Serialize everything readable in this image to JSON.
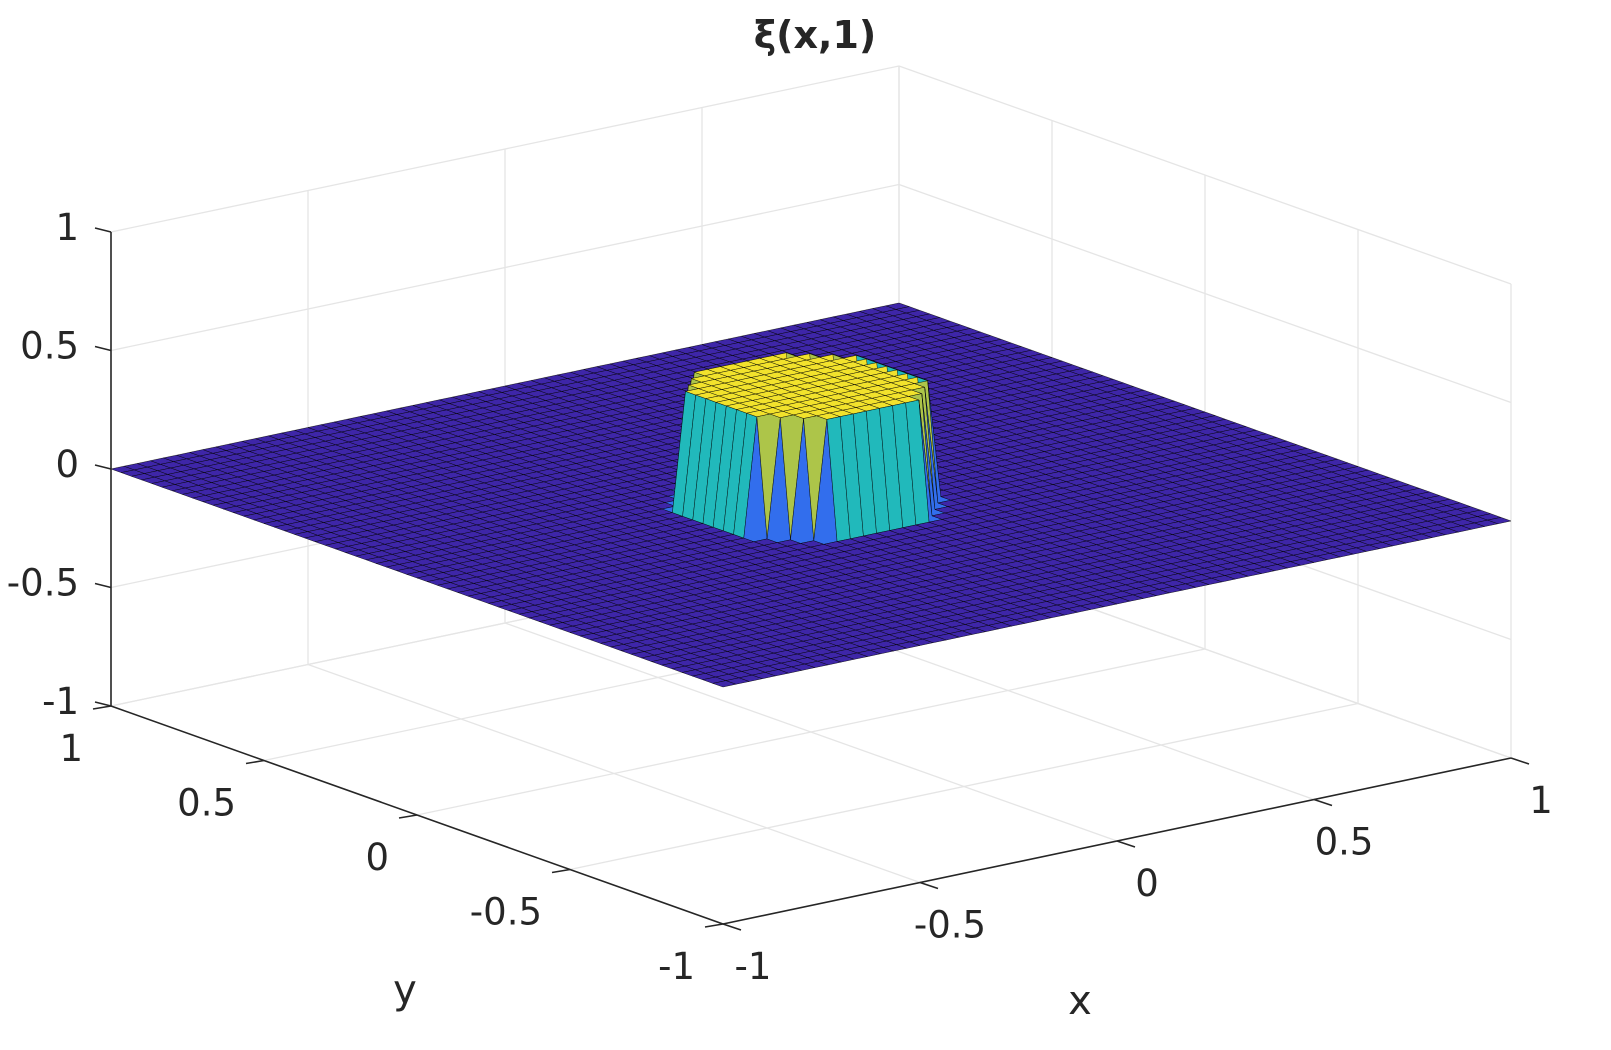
{
  "chart_data": {
    "type": "surface",
    "title": "ξ(x,1)",
    "xlabel": "x",
    "ylabel": "y",
    "zlabel": "",
    "xlim": [
      -1,
      1
    ],
    "ylim": [
      -1,
      1
    ],
    "zlim": [
      -1,
      1
    ],
    "xticks": [
      -1,
      -0.5,
      0,
      0.5,
      1
    ],
    "yticks": [
      -1,
      -0.5,
      0,
      0.5,
      1
    ],
    "zticks": [
      -1,
      -0.5,
      0,
      0.5,
      1
    ],
    "xtick_labels": [
      "-1",
      "-0.5",
      "0",
      "0.5",
      "1"
    ],
    "ytick_labels": [
      "-1",
      "-0.5",
      "0",
      "0.5",
      "1"
    ],
    "ztick_labels": [
      "-1",
      "-0.5",
      "0",
      "0.5",
      "1"
    ],
    "grid": true,
    "colormap": "parula",
    "grid_resolution": [
      61,
      61
    ],
    "surface": {
      "shape": "flat-topped cylindrical bump",
      "center": [
        -0.05,
        -0.05
      ],
      "radius": 0.25,
      "height": 0.5,
      "baseline": 0
    },
    "colors": {
      "base": "#3e26a8",
      "top": "#f2e22c",
      "edge": "#000000",
      "grid": "#e5e5e5",
      "axis": "#262626"
    }
  }
}
